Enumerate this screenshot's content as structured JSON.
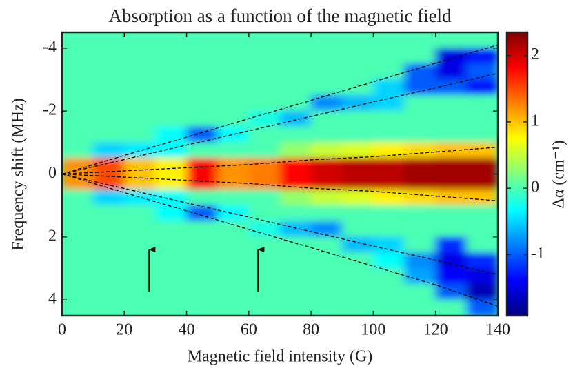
{
  "chart_data": {
    "type": "heatmap",
    "title": "Absorption as a function of the magnetic field",
    "x_label": "Magnetic field intensity (G)",
    "y_label": "Frequency shift (MHz)",
    "xlim": [
      0,
      140
    ],
    "xticks": [
      0,
      20,
      40,
      60,
      80,
      100,
      120,
      140
    ],
    "ylim": [
      -4.5,
      4.5
    ],
    "yticks": [
      -4,
      -2,
      0,
      2,
      4
    ],
    "y_reversed": true,
    "colormap": "jet",
    "x": [
      5,
      15,
      25,
      35,
      45,
      55,
      65,
      75,
      85,
      95,
      105,
      115,
      125,
      135
    ],
    "y": [
      -4.25,
      -3.75,
      -3.25,
      -2.75,
      -2.25,
      -1.75,
      -1.25,
      -0.75,
      -0.25,
      0.25,
      0.75,
      1.25,
      1.75,
      2.25,
      2.75,
      3.25,
      3.75,
      4.25
    ],
    "z": [
      [
        0,
        0,
        0,
        0,
        0,
        0,
        0,
        0,
        0,
        0,
        0,
        0,
        0,
        0
      ],
      [
        0,
        0,
        0,
        0,
        0,
        0,
        0,
        0,
        0,
        0,
        0,
        0,
        -1.5,
        -1.3
      ],
      [
        0,
        0,
        0,
        0,
        0,
        0,
        0,
        0,
        0,
        0,
        0,
        -1.0,
        -1.5,
        -1.0
      ],
      [
        0,
        0,
        0,
        0,
        0,
        0,
        0,
        0,
        0,
        0,
        -0.5,
        -1.0,
        -1.0,
        -1.3
      ],
      [
        0,
        0,
        0,
        0,
        0,
        0,
        0,
        0,
        -0.8,
        -0.6,
        -0.5,
        0,
        0,
        0
      ],
      [
        0,
        0,
        0,
        0,
        0,
        0,
        -0.2,
        -0.6,
        0,
        0,
        0,
        0,
        0,
        0
      ],
      [
        0,
        0,
        0,
        -0.3,
        -1.0,
        -0.3,
        0,
        0,
        0,
        0,
        0,
        0,
        0,
        0
      ],
      [
        0,
        -0.5,
        -0.4,
        -0.3,
        0,
        0,
        0,
        0.3,
        0.5,
        0.6,
        0.8,
        0.9,
        1.0,
        1.0
      ],
      [
        1.2,
        1.5,
        1.0,
        0.8,
        1.8,
        1.2,
        1.3,
        1.8,
        2.0,
        2.1,
        2.1,
        2.2,
        2.2,
        2.2
      ],
      [
        1.2,
        1.5,
        1.0,
        0.8,
        1.8,
        1.2,
        1.3,
        1.8,
        2.0,
        2.1,
        2.1,
        2.2,
        2.2,
        2.2
      ],
      [
        0,
        -0.5,
        -0.4,
        -0.3,
        0,
        0,
        0,
        0.3,
        0.5,
        0.6,
        0.8,
        0.9,
        1.0,
        1.0
      ],
      [
        0,
        0,
        0,
        -0.3,
        -1.0,
        -0.3,
        0,
        0,
        0,
        0,
        0,
        0,
        0,
        0
      ],
      [
        0,
        0,
        0,
        0,
        0,
        0,
        -0.2,
        -0.6,
        -0.8,
        0,
        0,
        0,
        0,
        0
      ],
      [
        0,
        0,
        0,
        0,
        0,
        0,
        0,
        0,
        0,
        -0.6,
        -0.5,
        0,
        -1.2,
        0
      ],
      [
        0,
        0,
        0,
        0,
        0,
        0,
        0,
        0,
        0,
        0,
        -0.3,
        -0.8,
        -1.5,
        -1.2
      ],
      [
        0,
        0,
        0,
        0,
        0,
        0,
        0,
        0,
        0,
        0,
        0,
        -0.7,
        -1.4,
        -1.5
      ],
      [
        0,
        0,
        0,
        0,
        0,
        0,
        0,
        0,
        0,
        0,
        0,
        0,
        -1.0,
        -1.7
      ],
      [
        0,
        0,
        0,
        0,
        0,
        0,
        0,
        0,
        0,
        0,
        0,
        0,
        0,
        -1.0
      ]
    ],
    "dashed_lines": {
      "color": "#000000",
      "x": [
        0,
        20,
        40,
        60,
        80,
        100,
        120,
        140
      ],
      "series": [
        {
          "values": [
            0,
            -0.59,
            -1.17,
            -1.76,
            -2.34,
            -2.93,
            -3.52,
            -4.1
          ]
        },
        {
          "values": [
            0,
            -0.46,
            -0.92,
            -1.37,
            -1.83,
            -2.29,
            -2.74,
            -3.2
          ]
        },
        {
          "values": [
            0,
            -0.1,
            -0.2,
            -0.3,
            -0.45,
            -0.55,
            -0.7,
            -0.85
          ]
        },
        {
          "values": [
            0,
            0.1,
            0.2,
            0.3,
            0.45,
            0.55,
            0.7,
            0.85
          ]
        },
        {
          "values": [
            0,
            0.46,
            0.92,
            1.37,
            1.83,
            2.29,
            2.74,
            3.2
          ]
        },
        {
          "values": [
            0,
            0.59,
            1.17,
            1.76,
            2.34,
            2.93,
            3.52,
            4.2
          ]
        }
      ]
    },
    "arrows": [
      {
        "x": 28,
        "y_from": 3.75,
        "y_to": 2.4
      },
      {
        "x": 63,
        "y_from": 3.75,
        "y_to": 2.4
      }
    ],
    "colorbar": {
      "label": "Δα  (cm⁻¹)",
      "lim": [
        -1.92,
        2.35
      ],
      "ticks": [
        -1,
        0,
        1,
        2
      ]
    }
  }
}
